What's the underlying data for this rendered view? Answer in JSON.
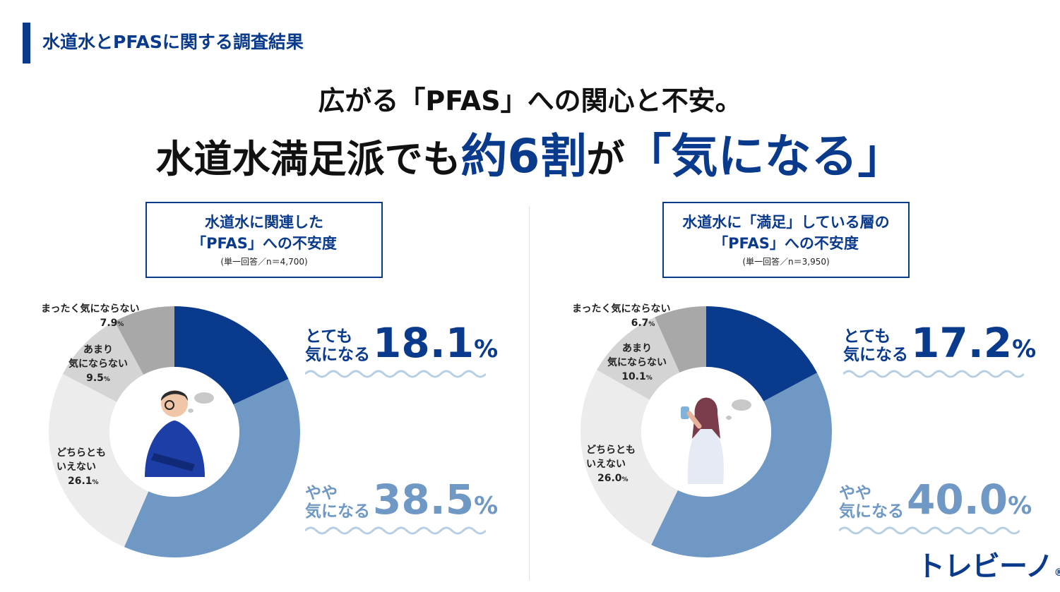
{
  "header": {
    "tag": "水道水とPFASに関する調査結果",
    "title_line1": "広がる「PFAS」への関心と不安。",
    "title_line2_a": "水道水満足派でも",
    "title_line2_b": "約6割",
    "title_line2_c": "が",
    "title_line2_d": "「気になる」"
  },
  "colors": {
    "accent": "#0a3a8c",
    "light_blue": "#6f98c5",
    "gray_dark": "#a8a8a8",
    "gray_mid": "#d4d4d4",
    "gray_light": "#ececec",
    "wave": "#b7cfe3"
  },
  "left": {
    "box_line1": "水道水に関連した",
    "box_line2": "「PFAS」への不安度",
    "box_note": "(単一回答／n＝4,700)",
    "labels": [
      {
        "name": "まったく気にならない",
        "value": "7.9",
        "unit": "%"
      },
      {
        "name1": "あまり",
        "name2": "気にならない",
        "value": "9.5",
        "unit": "%"
      },
      {
        "name1": "どちらとも",
        "name2": "いえない",
        "value": "26.1",
        "unit": "%"
      }
    ],
    "big1_l1": "とても",
    "big1_l2": "気になる",
    "big1_num": "18.1",
    "big1_unit": "%",
    "big2_l1": "やや",
    "big2_l2": "気になる",
    "big2_num": "38.5",
    "big2_unit": "%"
  },
  "right": {
    "box_line1": "水道水に「満足」している層の",
    "box_line2": "「PFAS」への不安度",
    "box_note": "(単一回答／n＝3,950)",
    "labels": [
      {
        "name": "まったく気にならない",
        "value": "6.7",
        "unit": "%"
      },
      {
        "name1": "あまり",
        "name2": "気にならない",
        "value": "10.1",
        "unit": "%"
      },
      {
        "name1": "どちらとも",
        "name2": "いえない",
        "value": "26.0",
        "unit": "%"
      }
    ],
    "big1_l1": "とても",
    "big1_l2": "気になる",
    "big1_num": "17.2",
    "big1_unit": "%",
    "big2_l1": "やや",
    "big2_l2": "気になる",
    "big2_num": "40.0",
    "big2_unit": "%"
  },
  "brand": {
    "name": "トレビーノ",
    "mark": "®"
  },
  "chart_data": [
    {
      "type": "pie",
      "title": "水道水に関連した「PFAS」への不安度",
      "note": "(単一回答／n＝4,700)",
      "categories": [
        "とても気になる",
        "やや気になる",
        "どちらともいえない",
        "あまり気にならない",
        "まったく気にならない"
      ],
      "values": [
        18.1,
        38.5,
        26.1,
        9.5,
        7.9
      ],
      "unit": "%"
    },
    {
      "type": "pie",
      "title": "水道水に「満足」している層の「PFAS」への不安度",
      "note": "(単一回答／n＝3,950)",
      "categories": [
        "とても気になる",
        "やや気になる",
        "どちらともいえない",
        "あまり気にならない",
        "まったく気にならない"
      ],
      "values": [
        17.2,
        40.0,
        26.0,
        10.1,
        6.7
      ],
      "unit": "%"
    }
  ]
}
